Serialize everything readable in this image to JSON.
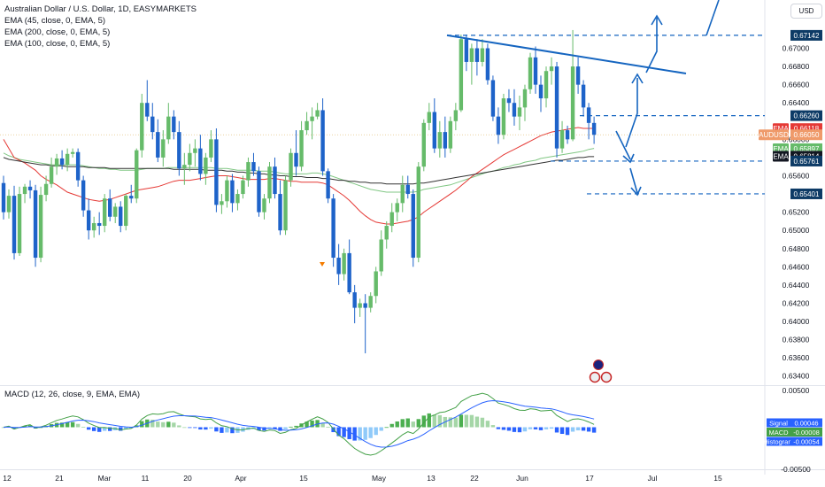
{
  "header": {
    "title": "Australian Dollar / U.S. Dollar, 1D, EASYMARKETS",
    "indicators": [
      "EMA (45, close, 0, EMA, 5)",
      "EMA (200, close, 0, EMA, 5)",
      "EMA (100, close, 0, EMA, 5)"
    ],
    "currency_button": "USD"
  },
  "macd_legend": "MACD (12, 26, close, 9, EMA, EMA)",
  "colors": {
    "up": "#66bb6a",
    "down": "#1e63c9",
    "ema45": "#e53935",
    "ema100": "#81c784",
    "ema200": "#333333",
    "annotation": "#1565c0"
  },
  "chart_data": [
    {
      "type": "candlestick",
      "symbol": "AUDUSD",
      "y_ticks": [
        "0.67000",
        "0.66800",
        "0.66600",
        "0.66400",
        "0.66000",
        "0.65600",
        "0.65200",
        "0.65000",
        "0.64800",
        "0.64600",
        "0.64400",
        "0.64200",
        "0.64000",
        "0.63800",
        "0.63600",
        "0.63400"
      ],
      "x_ticks": [
        "12",
        "21",
        "Mar",
        "11",
        "20",
        "Apr",
        "15",
        "May",
        "13",
        "22",
        "Jun",
        "17",
        "Jul",
        "15"
      ],
      "ylim": [
        0.6331,
        0.6753
      ],
      "price_labels": [
        {
          "text": "0.67142",
          "value": 0.67142,
          "style": "dark-blue"
        },
        {
          "text": "0.66260",
          "value": 0.6626,
          "style": "dark-blue"
        },
        {
          "text": "EMA",
          "value2": "0.66118",
          "value": 0.66118,
          "style": "red"
        },
        {
          "text": "AUDUSD",
          "value2": "0.66050",
          "value": 0.6605,
          "style": "orange"
        },
        {
          "text": "EMA",
          "value2": "0.65897",
          "value": 0.65897,
          "style": "green"
        },
        {
          "text": "EMA",
          "value2": "0.65814",
          "value": 0.65814,
          "style": "black"
        },
        {
          "text": "0.65761",
          "value": 0.65761,
          "style": "dark-blue"
        },
        {
          "text": "0.65401",
          "value": 0.65401,
          "style": "dark-blue"
        }
      ],
      "candles": [
        [
          0.6552,
          0.656,
          0.6512,
          0.652
        ],
        [
          0.652,
          0.6545,
          0.6513,
          0.6538
        ],
        [
          0.6538,
          0.6549,
          0.6468,
          0.6475
        ],
        [
          0.6475,
          0.6548,
          0.6472,
          0.654
        ],
        [
          0.654,
          0.6551,
          0.653,
          0.6548
        ],
        [
          0.6548,
          0.6555,
          0.6535,
          0.6544
        ],
        [
          0.6544,
          0.655,
          0.646,
          0.647
        ],
        [
          0.647,
          0.6548,
          0.6465,
          0.6539
        ],
        [
          0.6539,
          0.656,
          0.6532,
          0.6551
        ],
        [
          0.6551,
          0.658,
          0.6547,
          0.657
        ],
        [
          0.657,
          0.6584,
          0.6561,
          0.6579
        ],
        [
          0.6579,
          0.6588,
          0.6567,
          0.6572
        ],
        [
          0.6572,
          0.659,
          0.6565,
          0.6584
        ],
        [
          0.6584,
          0.659,
          0.658,
          0.6586
        ],
        [
          0.6586,
          0.659,
          0.6548,
          0.6555
        ],
        [
          0.6555,
          0.656,
          0.6515,
          0.6522
        ],
        [
          0.6522,
          0.6535,
          0.649,
          0.65
        ],
        [
          0.65,
          0.6515,
          0.6492,
          0.6508
        ],
        [
          0.6508,
          0.652,
          0.6495,
          0.6505
        ],
        [
          0.6505,
          0.654,
          0.6498,
          0.6535
        ],
        [
          0.6535,
          0.6545,
          0.651,
          0.6515
        ],
        [
          0.6515,
          0.653,
          0.6508,
          0.6526
        ],
        [
          0.6526,
          0.6532,
          0.6498,
          0.6505
        ],
        [
          0.6505,
          0.654,
          0.65,
          0.6538
        ],
        [
          0.6538,
          0.655,
          0.653,
          0.6535
        ],
        [
          0.6535,
          0.659,
          0.653,
          0.6588
        ],
        [
          0.6588,
          0.665,
          0.658,
          0.664
        ],
        [
          0.664,
          0.6665,
          0.662,
          0.6625
        ],
        [
          0.6625,
          0.664,
          0.66,
          0.6608
        ],
        [
          0.6608,
          0.6622,
          0.6575,
          0.658
        ],
        [
          0.658,
          0.661,
          0.657,
          0.66
        ],
        [
          0.66,
          0.664,
          0.6595,
          0.6625
        ],
        [
          0.6625,
          0.6632,
          0.66,
          0.6608
        ],
        [
          0.6608,
          0.662,
          0.656,
          0.6568
        ],
        [
          0.6568,
          0.6585,
          0.655,
          0.6572
        ],
        [
          0.6572,
          0.6595,
          0.6565,
          0.6585
        ],
        [
          0.6585,
          0.66,
          0.657,
          0.659
        ],
        [
          0.659,
          0.6605,
          0.6555,
          0.6562
        ],
        [
          0.6562,
          0.6585,
          0.655,
          0.658
        ],
        [
          0.658,
          0.661,
          0.6575,
          0.66
        ],
        [
          0.66,
          0.6612,
          0.652,
          0.6528
        ],
        [
          0.6528,
          0.654,
          0.6518,
          0.6532
        ],
        [
          0.6532,
          0.656,
          0.6525,
          0.6555
        ],
        [
          0.6555,
          0.6562,
          0.652,
          0.653
        ],
        [
          0.653,
          0.6545,
          0.6522,
          0.654
        ],
        [
          0.654,
          0.656,
          0.6535,
          0.6555
        ],
        [
          0.6555,
          0.658,
          0.6548,
          0.6575
        ],
        [
          0.6575,
          0.6585,
          0.656,
          0.6565
        ],
        [
          0.6565,
          0.657,
          0.6515,
          0.652
        ],
        [
          0.652,
          0.654,
          0.6512,
          0.6535
        ],
        [
          0.6535,
          0.6575,
          0.653,
          0.657
        ],
        [
          0.657,
          0.658,
          0.6535,
          0.654
        ],
        [
          0.654,
          0.6555,
          0.6495,
          0.65
        ],
        [
          0.65,
          0.656,
          0.6495,
          0.6555
        ],
        [
          0.6555,
          0.659,
          0.6548,
          0.6585
        ],
        [
          0.6585,
          0.661,
          0.656,
          0.657
        ],
        [
          0.657,
          0.662,
          0.6565,
          0.661
        ],
        [
          0.661,
          0.663,
          0.6605,
          0.662
        ],
        [
          0.662,
          0.6635,
          0.66,
          0.6625
        ],
        [
          0.6625,
          0.664,
          0.6622,
          0.6632
        ],
        [
          0.6632,
          0.6645,
          0.656,
          0.6565
        ],
        [
          0.6565,
          0.6568,
          0.653,
          0.6535
        ],
        [
          0.6535,
          0.654,
          0.646,
          0.647
        ],
        [
          0.647,
          0.6485,
          0.644,
          0.6452
        ],
        [
          0.6452,
          0.648,
          0.6445,
          0.6475
        ],
        [
          0.6475,
          0.649,
          0.643,
          0.6432
        ],
        [
          0.6432,
          0.644,
          0.6398,
          0.6415
        ],
        [
          0.6415,
          0.6425,
          0.6405,
          0.642
        ],
        [
          0.642,
          0.643,
          0.6365,
          0.6415
        ],
        [
          0.6415,
          0.6432,
          0.641,
          0.6428
        ],
        [
          0.6428,
          0.646,
          0.642,
          0.6455
        ],
        [
          0.6455,
          0.65,
          0.645,
          0.649
        ],
        [
          0.649,
          0.651,
          0.648,
          0.6505
        ],
        [
          0.6505,
          0.653,
          0.6498,
          0.652
        ],
        [
          0.652,
          0.6535,
          0.651,
          0.653
        ],
        [
          0.653,
          0.656,
          0.652,
          0.655
        ],
        [
          0.655,
          0.656,
          0.6535,
          0.654
        ],
        [
          0.654,
          0.6545,
          0.646,
          0.647
        ],
        [
          0.647,
          0.6575,
          0.6465,
          0.657
        ],
        [
          0.657,
          0.6622,
          0.6565,
          0.6618
        ],
        [
          0.6618,
          0.664,
          0.661,
          0.663
        ],
        [
          0.663,
          0.6645,
          0.6585,
          0.659
        ],
        [
          0.659,
          0.662,
          0.658,
          0.6608
        ],
        [
          0.6608,
          0.6625,
          0.658,
          0.659
        ],
        [
          0.659,
          0.6625,
          0.6585,
          0.662
        ],
        [
          0.662,
          0.664,
          0.661,
          0.6632
        ],
        [
          0.6632,
          0.6715,
          0.663,
          0.671
        ],
        [
          0.671,
          0.6715,
          0.6675,
          0.6685
        ],
        [
          0.6685,
          0.6705,
          0.666,
          0.67
        ],
        [
          0.67,
          0.671,
          0.667,
          0.6685
        ],
        [
          0.6685,
          0.671,
          0.668,
          0.67
        ],
        [
          0.67,
          0.6705,
          0.666,
          0.6665
        ],
        [
          0.6665,
          0.667,
          0.662,
          0.6625
        ],
        [
          0.6625,
          0.6635,
          0.6595,
          0.6605
        ],
        [
          0.6605,
          0.665,
          0.66,
          0.6645
        ],
        [
          0.6645,
          0.6655,
          0.663,
          0.664
        ],
        [
          0.664,
          0.6655,
          0.6615,
          0.6625
        ],
        [
          0.6625,
          0.6648,
          0.661,
          0.6635
        ],
        [
          0.6635,
          0.666,
          0.662,
          0.6655
        ],
        [
          0.6655,
          0.6695,
          0.665,
          0.669
        ],
        [
          0.669,
          0.6702,
          0.665,
          0.666
        ],
        [
          0.666,
          0.667,
          0.663,
          0.6645
        ],
        [
          0.6645,
          0.668,
          0.6635,
          0.6675
        ],
        [
          0.6675,
          0.669,
          0.666,
          0.668
        ],
        [
          0.668,
          0.6685,
          0.658,
          0.659
        ],
        [
          0.659,
          0.662,
          0.6585,
          0.661
        ],
        [
          0.661,
          0.6615,
          0.6595,
          0.66
        ],
        [
          0.66,
          0.672,
          0.6598,
          0.668
        ],
        [
          0.668,
          0.669,
          0.665,
          0.666
        ],
        [
          0.666,
          0.6665,
          0.6625,
          0.6635
        ],
        [
          0.6635,
          0.664,
          0.66,
          0.6618
        ],
        [
          0.6618,
          0.6625,
          0.6595,
          0.6605
        ]
      ],
      "ema45": [
        0.66,
        0.659,
        0.658,
        0.6577,
        0.6574,
        0.657,
        0.6566,
        0.656,
        0.6556,
        0.6553,
        0.655,
        0.6546,
        0.6542,
        0.654,
        0.6538,
        0.6536,
        0.6534,
        0.6533,
        0.6532,
        0.6533,
        0.6534,
        0.6536,
        0.6538,
        0.654,
        0.6542,
        0.6544,
        0.6545,
        0.6546,
        0.6547,
        0.6548,
        0.655,
        0.6552,
        0.6554,
        0.6555,
        0.6555,
        0.6555,
        0.6556,
        0.6557,
        0.6558,
        0.6559,
        0.656,
        0.656,
        0.656,
        0.6559,
        0.6558,
        0.6557,
        0.6556,
        0.6556,
        0.6556,
        0.6556,
        0.6557,
        0.6557,
        0.6556,
        0.6555,
        0.6554,
        0.6554,
        0.6553,
        0.6553,
        0.6553,
        0.6553,
        0.6552,
        0.655,
        0.6546,
        0.6542,
        0.6538,
        0.6533,
        0.6527,
        0.6521,
        0.6516,
        0.6512,
        0.6509,
        0.6508,
        0.6507,
        0.6507,
        0.6508,
        0.6509,
        0.651,
        0.6512,
        0.6515,
        0.652,
        0.6524,
        0.6528,
        0.6532,
        0.6536,
        0.654,
        0.6544,
        0.6549,
        0.6554,
        0.6559,
        0.6563,
        0.6567,
        0.6571,
        0.6575,
        0.6579,
        0.6583,
        0.6586,
        0.6589,
        0.6592,
        0.6595,
        0.6598,
        0.6601,
        0.6604,
        0.6606,
        0.6608,
        0.6609,
        0.661,
        0.6611,
        0.6612,
        0.6613,
        0.6612,
        0.6612,
        0.6612
      ],
      "ema100": [
        0.6585,
        0.6582,
        0.658,
        0.6578,
        0.6577,
        0.6576,
        0.6575,
        0.6574,
        0.6573,
        0.6572,
        0.6572,
        0.6572,
        0.6572,
        0.6572,
        0.6572,
        0.6571,
        0.657,
        0.6569,
        0.6568,
        0.6568,
        0.6567,
        0.6567,
        0.6566,
        0.6566,
        0.6566,
        0.6566,
        0.6567,
        0.6568,
        0.6568,
        0.6568,
        0.6568,
        0.6569,
        0.6569,
        0.6569,
        0.6569,
        0.6569,
        0.6569,
        0.6569,
        0.6569,
        0.6569,
        0.6568,
        0.6568,
        0.6568,
        0.6567,
        0.6566,
        0.6566,
        0.6566,
        0.6566,
        0.6565,
        0.6565,
        0.6565,
        0.6564,
        0.6563,
        0.6562,
        0.6562,
        0.6562,
        0.6562,
        0.6562,
        0.6563,
        0.6563,
        0.6562,
        0.6561,
        0.6559,
        0.6557,
        0.6555,
        0.6553,
        0.6551,
        0.6549,
        0.6547,
        0.6545,
        0.6544,
        0.6543,
        0.6542,
        0.6542,
        0.6542,
        0.6542,
        0.6542,
        0.6542,
        0.6543,
        0.6545,
        0.6546,
        0.6547,
        0.6548,
        0.6549,
        0.655,
        0.6552,
        0.6554,
        0.6556,
        0.6558,
        0.656,
        0.6562,
        0.6564,
        0.6565,
        0.6567,
        0.6569,
        0.657,
        0.6572,
        0.6573,
        0.6575,
        0.6576,
        0.6577,
        0.6579,
        0.658,
        0.6581,
        0.6582,
        0.6583,
        0.6584,
        0.6585,
        0.6586,
        0.6587,
        0.6589,
        0.659
      ],
      "ema200": [
        0.658,
        0.6578,
        0.6577,
        0.6576,
        0.6575,
        0.6574,
        0.6573,
        0.6572,
        0.6572,
        0.6571,
        0.6571,
        0.6571,
        0.657,
        0.657,
        0.657,
        0.657,
        0.6569,
        0.6569,
        0.6569,
        0.6569,
        0.6568,
        0.6568,
        0.6568,
        0.6568,
        0.6568,
        0.6568,
        0.6568,
        0.6568,
        0.6568,
        0.6568,
        0.6568,
        0.6568,
        0.6567,
        0.6567,
        0.6567,
        0.6567,
        0.6567,
        0.6567,
        0.6566,
        0.6566,
        0.6566,
        0.6566,
        0.6565,
        0.6565,
        0.6564,
        0.6564,
        0.6563,
        0.6563,
        0.6562,
        0.6562,
        0.6561,
        0.6561,
        0.656,
        0.656,
        0.6559,
        0.6559,
        0.6559,
        0.6558,
        0.6558,
        0.6558,
        0.6557,
        0.6557,
        0.6556,
        0.6555,
        0.6555,
        0.6554,
        0.6554,
        0.6553,
        0.6553,
        0.6552,
        0.6552,
        0.6552,
        0.6551,
        0.6551,
        0.6551,
        0.6551,
        0.6551,
        0.6551,
        0.6552,
        0.6552,
        0.6553,
        0.6554,
        0.6555,
        0.6556,
        0.6557,
        0.6558,
        0.6559,
        0.656,
        0.6561,
        0.6562,
        0.6563,
        0.6564,
        0.6565,
        0.6566,
        0.6567,
        0.6568,
        0.6569,
        0.657,
        0.6571,
        0.6572,
        0.6573,
        0.6574,
        0.6575,
        0.6576,
        0.6577,
        0.6577,
        0.6578,
        0.6579,
        0.658,
        0.658,
        0.6581,
        0.6581
      ]
    },
    {
      "type": "histogram",
      "name": "MACD (12, 26, close, 9, EMA, EMA)",
      "y_ticks": [
        "0.00500",
        "-0.00500"
      ],
      "ylim": [
        -0.0055,
        0.0055
      ],
      "labels": [
        {
          "text": "Signal",
          "value2": "0.00046",
          "value": 0.00046,
          "color": "#2962ff"
        },
        {
          "text": "MACD",
          "value2": "-0.00008",
          "value": -8e-05,
          "color": "#43a047"
        },
        {
          "text": "Histogram",
          "value2": "-0.00054",
          "value": -0.00054,
          "color": "#2962ff"
        }
      ]
    }
  ]
}
